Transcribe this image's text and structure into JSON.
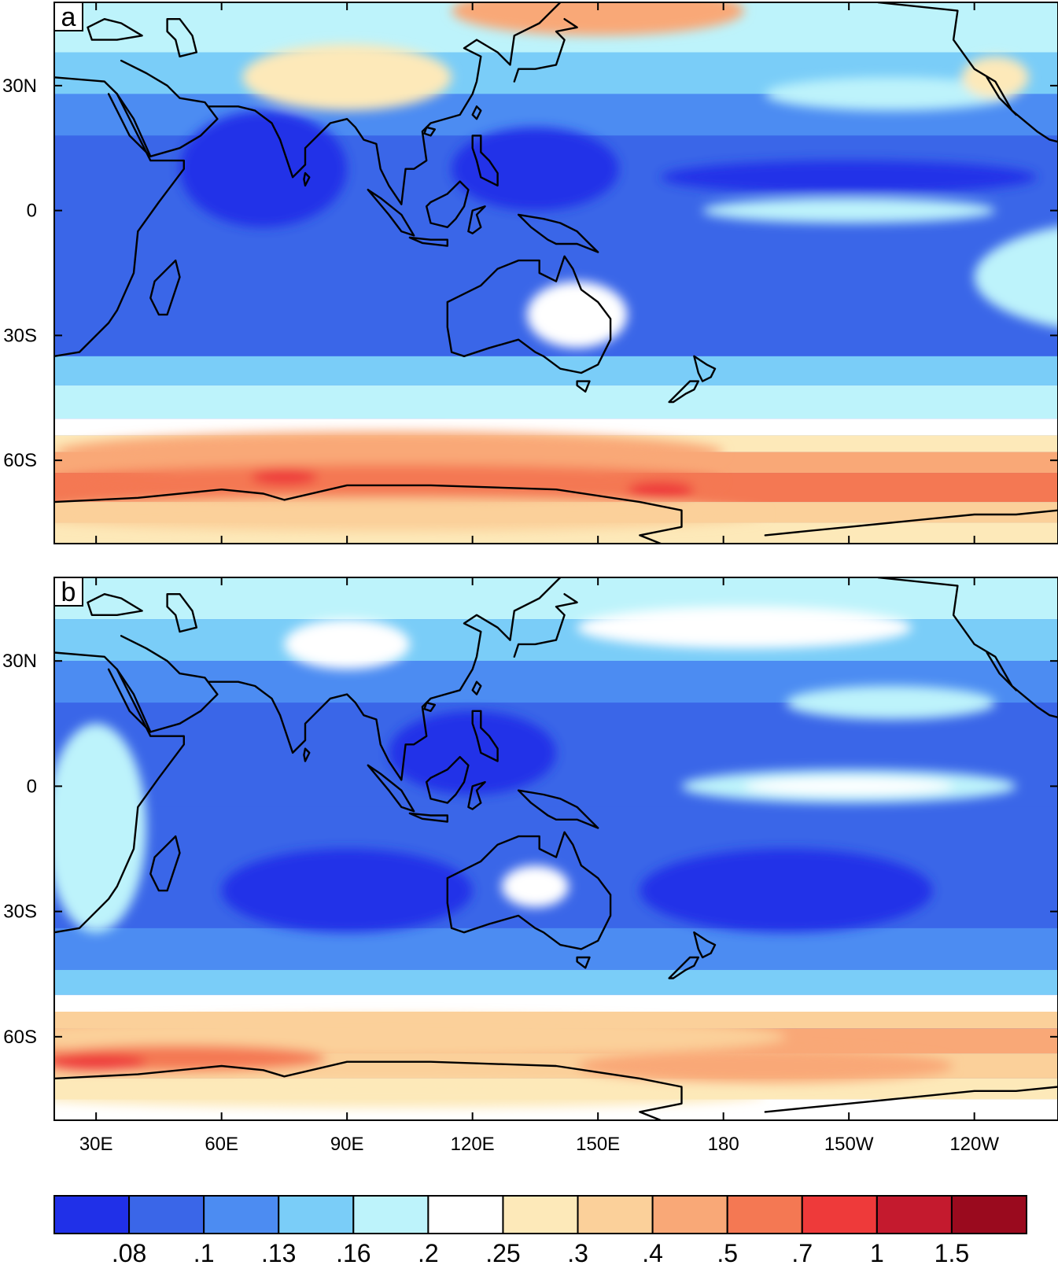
{
  "panels": [
    {
      "label": "a",
      "blobs": [
        {
          "lon": 280,
          "lat": -16,
          "rx": 40,
          "ry": 14,
          "level": 4
        },
        {
          "lon": 70,
          "lat": 10,
          "rx": 20,
          "ry": 14,
          "level": 0
        },
        {
          "lon": 135,
          "lat": 10,
          "rx": 20,
          "ry": 10,
          "level": 0
        },
        {
          "lon": 210,
          "lat": 8,
          "rx": 45,
          "ry": 4,
          "level": 0
        },
        {
          "lon": 145,
          "lat": -25,
          "rx": 12,
          "ry": 8,
          "level": 5
        },
        {
          "lon": 210,
          "lat": 0,
          "rx": 35,
          "ry": 3,
          "level": 4
        },
        {
          "lon": 90,
          "lat": 32,
          "rx": 25,
          "ry": 8,
          "level": 6
        },
        {
          "lon": 220,
          "lat": 28,
          "rx": 30,
          "ry": 4,
          "level": 4
        },
        {
          "lon": 245,
          "lat": 32,
          "rx": 8,
          "ry": 5,
          "level": 6
        },
        {
          "lon": 150,
          "lat": 48,
          "rx": 35,
          "ry": 6,
          "level": 8
        },
        {
          "lon": 100,
          "lat": -58,
          "rx": 80,
          "ry": 5,
          "level": 8
        },
        {
          "lon": 100,
          "lat": -65,
          "rx": 80,
          "ry": 4,
          "level": 9
        },
        {
          "lon": 75,
          "lat": -64,
          "rx": 8,
          "ry": 2,
          "level": 10
        },
        {
          "lon": 165,
          "lat": -67,
          "rx": 8,
          "ry": 2,
          "level": 10
        },
        {
          "lon": 100,
          "lat": -73,
          "rx": 90,
          "ry": 4,
          "level": 7
        }
      ]
    },
    {
      "label": "b",
      "blobs": [
        {
          "lon": 90,
          "lat": -25,
          "rx": 30,
          "ry": 10,
          "level": 0
        },
        {
          "lon": 195,
          "lat": -25,
          "rx": 35,
          "ry": 10,
          "level": 0
        },
        {
          "lon": 120,
          "lat": 8,
          "rx": 20,
          "ry": 10,
          "level": 0
        },
        {
          "lon": 210,
          "lat": 0,
          "rx": 40,
          "ry": 4,
          "level": 4
        },
        {
          "lon": 210,
          "lat": 0,
          "rx": 25,
          "ry": 2,
          "level": 5
        },
        {
          "lon": 135,
          "lat": -24,
          "rx": 8,
          "ry": 5,
          "level": 5
        },
        {
          "lon": 220,
          "lat": 20,
          "rx": 25,
          "ry": 4,
          "level": 4
        },
        {
          "lon": 90,
          "lat": 34,
          "rx": 15,
          "ry": 6,
          "level": 5
        },
        {
          "lon": 30,
          "lat": -10,
          "rx": 12,
          "ry": 25,
          "level": 4
        },
        {
          "lon": 185,
          "lat": 38,
          "rx": 40,
          "ry": 5,
          "level": 5
        },
        {
          "lon": 100,
          "lat": -60,
          "rx": 95,
          "ry": 5,
          "level": 7
        },
        {
          "lon": 50,
          "lat": -65,
          "rx": 35,
          "ry": 3,
          "level": 9
        },
        {
          "lon": 30,
          "lat": -66,
          "rx": 12,
          "ry": 2,
          "level": 10
        },
        {
          "lon": 190,
          "lat": -67,
          "rx": 45,
          "ry": 4,
          "level": 8
        },
        {
          "lon": 100,
          "lat": -74,
          "rx": 90,
          "ry": 3,
          "level": 6
        }
      ]
    }
  ],
  "axes": {
    "lon_range": [
      20,
      260
    ],
    "lat_range": [
      -80,
      50
    ],
    "x_ticks": [
      {
        "lon": 30,
        "label": "30E"
      },
      {
        "lon": 60,
        "label": "60E"
      },
      {
        "lon": 90,
        "label": "90E"
      },
      {
        "lon": 120,
        "label": "120E"
      },
      {
        "lon": 150,
        "label": "150E"
      },
      {
        "lon": 180,
        "label": "180"
      },
      {
        "lon": 210,
        "label": "150W"
      },
      {
        "lon": 240,
        "label": "120W"
      }
    ],
    "y_ticks": [
      {
        "lat": 30,
        "label": "30N"
      },
      {
        "lat": 0,
        "label": "0"
      },
      {
        "lat": -30,
        "label": "30S"
      },
      {
        "lat": -60,
        "label": "60S"
      }
    ]
  },
  "colorbar": {
    "colors": [
      "#2030e8",
      "#3a66e8",
      "#4c8cf2",
      "#7acdf8",
      "#bdf3fb",
      "#ffffff",
      "#fde9b9",
      "#fbd09a",
      "#f9a877",
      "#f47853",
      "#ee3a3a",
      "#c41a2e",
      "#9a0a1e"
    ],
    "labels": [
      ".08",
      ".1",
      ".13",
      ".16",
      ".2",
      ".25",
      ".3",
      ".4",
      ".5",
      ".7",
      "1",
      "1.5"
    ]
  },
  "coastlines": {
    "africa": [
      [
        -6,
        36
      ],
      [
        10,
        37
      ],
      [
        20,
        32
      ],
      [
        32,
        31
      ],
      [
        35,
        28
      ],
      [
        43,
        12
      ],
      [
        51,
        12
      ],
      [
        51,
        10
      ],
      [
        45,
        2
      ],
      [
        40,
        -5
      ],
      [
        39,
        -15
      ],
      [
        35,
        -24
      ],
      [
        33,
        -27
      ],
      [
        26,
        -34
      ],
      [
        20,
        -35
      ],
      [
        18,
        -33
      ]
    ],
    "arabia": [
      [
        35,
        28
      ],
      [
        39,
        22
      ],
      [
        43,
        13
      ],
      [
        50,
        15
      ],
      [
        55,
        18
      ],
      [
        59,
        22
      ],
      [
        56,
        26
      ],
      [
        50,
        27
      ],
      [
        47,
        30
      ],
      [
        42,
        33
      ],
      [
        36,
        36
      ]
    ],
    "south_asia": [
      [
        57,
        25
      ],
      [
        64,
        25
      ],
      [
        68,
        24
      ],
      [
        72,
        21
      ],
      [
        74,
        17
      ],
      [
        77,
        8
      ],
      [
        80,
        11
      ],
      [
        80,
        15
      ],
      [
        86,
        21
      ],
      [
        90,
        22
      ],
      [
        92,
        20
      ],
      [
        94,
        17
      ],
      [
        97,
        16
      ],
      [
        98,
        10
      ],
      [
        100,
        6
      ],
      [
        103,
        1.5
      ],
      [
        104,
        10
      ],
      [
        106,
        10
      ],
      [
        109,
        12
      ],
      [
        108,
        19
      ],
      [
        110,
        21
      ],
      [
        117,
        23
      ],
      [
        120,
        28
      ],
      [
        121,
        31
      ],
      [
        122,
        37
      ],
      [
        118,
        39
      ],
      [
        121,
        41
      ],
      [
        126,
        38
      ],
      [
        129,
        35
      ],
      [
        130,
        42
      ],
      [
        136,
        45
      ],
      [
        141,
        50
      ]
    ],
    "japan": [
      [
        130,
        31
      ],
      [
        131,
        34
      ],
      [
        135,
        34
      ],
      [
        140,
        35
      ],
      [
        141,
        38
      ],
      [
        142,
        41
      ],
      [
        140,
        43
      ],
      [
        145,
        44
      ],
      [
        142,
        46
      ]
    ],
    "kamchatka": [
      [
        156,
        51
      ],
      [
        160,
        55
      ]
    ],
    "north_america": [
      [
        217,
        50
      ],
      [
        236,
        48
      ],
      [
        235,
        41
      ],
      [
        240,
        34
      ],
      [
        245,
        31
      ],
      [
        249,
        24
      ],
      [
        255,
        19
      ],
      [
        258,
        17
      ],
      [
        262,
        16
      ]
    ],
    "baja": [
      [
        243,
        32
      ],
      [
        246,
        27
      ],
      [
        250,
        23
      ]
    ],
    "madagascar": [
      [
        49,
        -12
      ],
      [
        50,
        -16
      ],
      [
        48,
        -22
      ],
      [
        47,
        -25
      ],
      [
        45,
        -25
      ],
      [
        43,
        -21
      ],
      [
        44,
        -17
      ],
      [
        47,
        -14
      ],
      [
        49,
        -12
      ]
    ],
    "sri_lanka": [
      [
        80,
        6
      ],
      [
        81,
        8
      ],
      [
        80,
        9
      ],
      [
        79.7,
        7.5
      ],
      [
        80,
        6
      ]
    ],
    "australia": [
      [
        114,
        -22
      ],
      [
        122,
        -18
      ],
      [
        126,
        -14
      ],
      [
        131,
        -12
      ],
      [
        136,
        -12
      ],
      [
        136,
        -15
      ],
      [
        140,
        -17
      ],
      [
        142,
        -11
      ],
      [
        144,
        -14
      ],
      [
        146,
        -19
      ],
      [
        150,
        -22
      ],
      [
        153,
        -26
      ],
      [
        153,
        -31
      ],
      [
        150,
        -37
      ],
      [
        146,
        -39
      ],
      [
        141,
        -38
      ],
      [
        137,
        -35
      ],
      [
        135,
        -34
      ],
      [
        131,
        -31
      ],
      [
        124,
        -33
      ],
      [
        118,
        -35
      ],
      [
        115,
        -34
      ],
      [
        114,
        -28
      ],
      [
        114,
        -22
      ]
    ],
    "tasmania": [
      [
        145,
        -41
      ],
      [
        148,
        -41
      ],
      [
        147,
        -43.5
      ],
      [
        145,
        -42
      ],
      [
        145,
        -41
      ]
    ],
    "nz_north": [
      [
        173,
        -35
      ],
      [
        176,
        -37
      ],
      [
        178,
        -38
      ],
      [
        177,
        -40
      ],
      [
        175,
        -41
      ],
      [
        174,
        -39
      ],
      [
        173,
        -35
      ]
    ],
    "nz_south": [
      [
        174,
        -41
      ],
      [
        173,
        -43
      ],
      [
        171,
        -44
      ],
      [
        168,
        -46
      ],
      [
        167,
        -46
      ],
      [
        169,
        -44
      ],
      [
        172,
        -41
      ],
      [
        174,
        -41
      ]
    ],
    "borneo": [
      [
        109,
        1
      ],
      [
        110,
        -3
      ],
      [
        114,
        -4
      ],
      [
        116,
        -2
      ],
      [
        118,
        1
      ],
      [
        119,
        5
      ],
      [
        117,
        7
      ],
      [
        114,
        4
      ],
      [
        110,
        2
      ],
      [
        109,
        1
      ]
    ],
    "sumatra": [
      [
        95,
        5
      ],
      [
        98,
        3
      ],
      [
        103,
        -1
      ],
      [
        106,
        -6
      ],
      [
        103,
        -5
      ],
      [
        100,
        -1
      ],
      [
        95,
        5
      ]
    ],
    "java": [
      [
        105,
        -6.5
      ],
      [
        110,
        -7
      ],
      [
        114,
        -7
      ],
      [
        114,
        -8.5
      ],
      [
        108,
        -7.8
      ],
      [
        105,
        -6.5
      ]
    ],
    "sulawesi": [
      [
        119,
        -5
      ],
      [
        120,
        0
      ],
      [
        123,
        1
      ],
      [
        121,
        -1
      ],
      [
        122,
        -4
      ],
      [
        120,
        -5.5
      ],
      [
        119,
        -5
      ]
    ],
    "new_guinea": [
      [
        131,
        -1
      ],
      [
        137,
        -2
      ],
      [
        141,
        -3
      ],
      [
        145,
        -5
      ],
      [
        148,
        -8
      ],
      [
        150,
        -10
      ],
      [
        145,
        -8
      ],
      [
        140,
        -8
      ],
      [
        138,
        -7
      ],
      [
        134,
        -4
      ],
      [
        131,
        -1
      ]
    ],
    "philippines": [
      [
        120,
        18
      ],
      [
        122,
        18
      ],
      [
        122,
        14
      ],
      [
        124,
        12
      ],
      [
        126,
        9
      ],
      [
        126,
        6
      ],
      [
        122,
        8
      ],
      [
        121,
        12
      ],
      [
        120,
        15
      ],
      [
        120,
        18
      ]
    ],
    "taiwan": [
      [
        121,
        25
      ],
      [
        122,
        24
      ],
      [
        121,
        22
      ],
      [
        120,
        23
      ],
      [
        121,
        25
      ]
    ],
    "hainan": [
      [
        109,
        20
      ],
      [
        111,
        19.5
      ],
      [
        110,
        18
      ],
      [
        108.5,
        18.5
      ],
      [
        109,
        20
      ]
    ],
    "black_sea": [
      [
        28,
        44
      ],
      [
        32,
        46
      ],
      [
        36,
        45
      ],
      [
        41,
        42
      ],
      [
        35,
        41
      ],
      [
        29,
        41
      ],
      [
        28,
        44
      ]
    ],
    "caspian": [
      [
        47,
        46
      ],
      [
        50,
        46
      ],
      [
        53,
        42
      ],
      [
        54,
        38
      ],
      [
        50,
        37
      ],
      [
        49,
        41
      ],
      [
        47,
        43
      ],
      [
        47,
        46
      ]
    ],
    "red_sea_inner": [
      [
        43,
        13
      ],
      [
        38,
        18
      ],
      [
        35,
        24
      ],
      [
        33,
        28
      ]
    ],
    "antarctica": [
      [
        20,
        -70
      ],
      [
        40,
        -69
      ],
      [
        60,
        -67
      ],
      [
        70,
        -68
      ],
      [
        75,
        -69.5
      ],
      [
        90,
        -66
      ],
      [
        110,
        -66
      ],
      [
        140,
        -67
      ],
      [
        160,
        -70
      ],
      [
        170,
        -72
      ],
      [
        170,
        -76
      ],
      [
        160,
        -78
      ],
      [
        165,
        -80
      ]
    ],
    "antarctica_east": [
      [
        190,
        -78
      ],
      [
        200,
        -77
      ],
      [
        210,
        -76
      ],
      [
        220,
        -75
      ],
      [
        230,
        -74
      ],
      [
        240,
        -73
      ],
      [
        250,
        -73
      ],
      [
        260,
        -72
      ]
    ]
  }
}
